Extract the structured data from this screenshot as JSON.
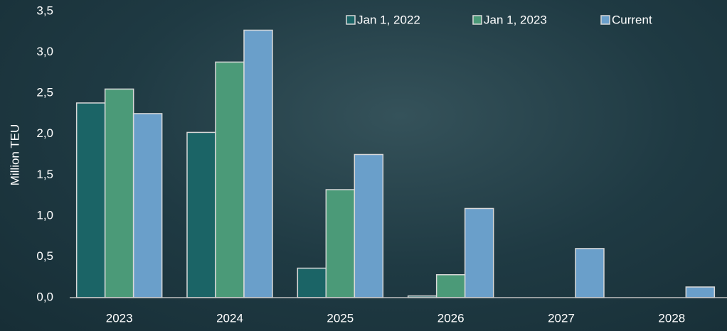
{
  "chart_data": {
    "type": "bar",
    "y_label": "Million TEU",
    "categories": [
      "2023",
      "2024",
      "2025",
      "2026",
      "2027",
      "2028"
    ],
    "series": [
      {
        "name": "Jan 1, 2022",
        "color": "#1b6466",
        "values": [
          2.38,
          2.02,
          0.36,
          0.02,
          null,
          null
        ]
      },
      {
        "name": "Jan 1, 2023",
        "color": "#4b9a78",
        "values": [
          2.55,
          2.88,
          1.32,
          0.28,
          null,
          null
        ]
      },
      {
        "name": "Current",
        "color": "#6a9fca",
        "values": [
          2.25,
          3.27,
          1.75,
          1.09,
          0.6,
          0.13
        ]
      }
    ],
    "ylim": [
      0,
      3.5
    ],
    "yticks": [
      {
        "value": 0,
        "label": "0,0"
      },
      {
        "value": 0.5,
        "label": "0,5"
      },
      {
        "value": 1,
        "label": "1,0"
      },
      {
        "value": 1.5,
        "label": "1,5"
      },
      {
        "value": 2,
        "label": "2,0"
      },
      {
        "value": 2.5,
        "label": "2,5"
      },
      {
        "value": 3,
        "label": "3,0"
      },
      {
        "value": 3.5,
        "label": "3,5"
      }
    ],
    "grid": false,
    "legend": "top-right"
  }
}
